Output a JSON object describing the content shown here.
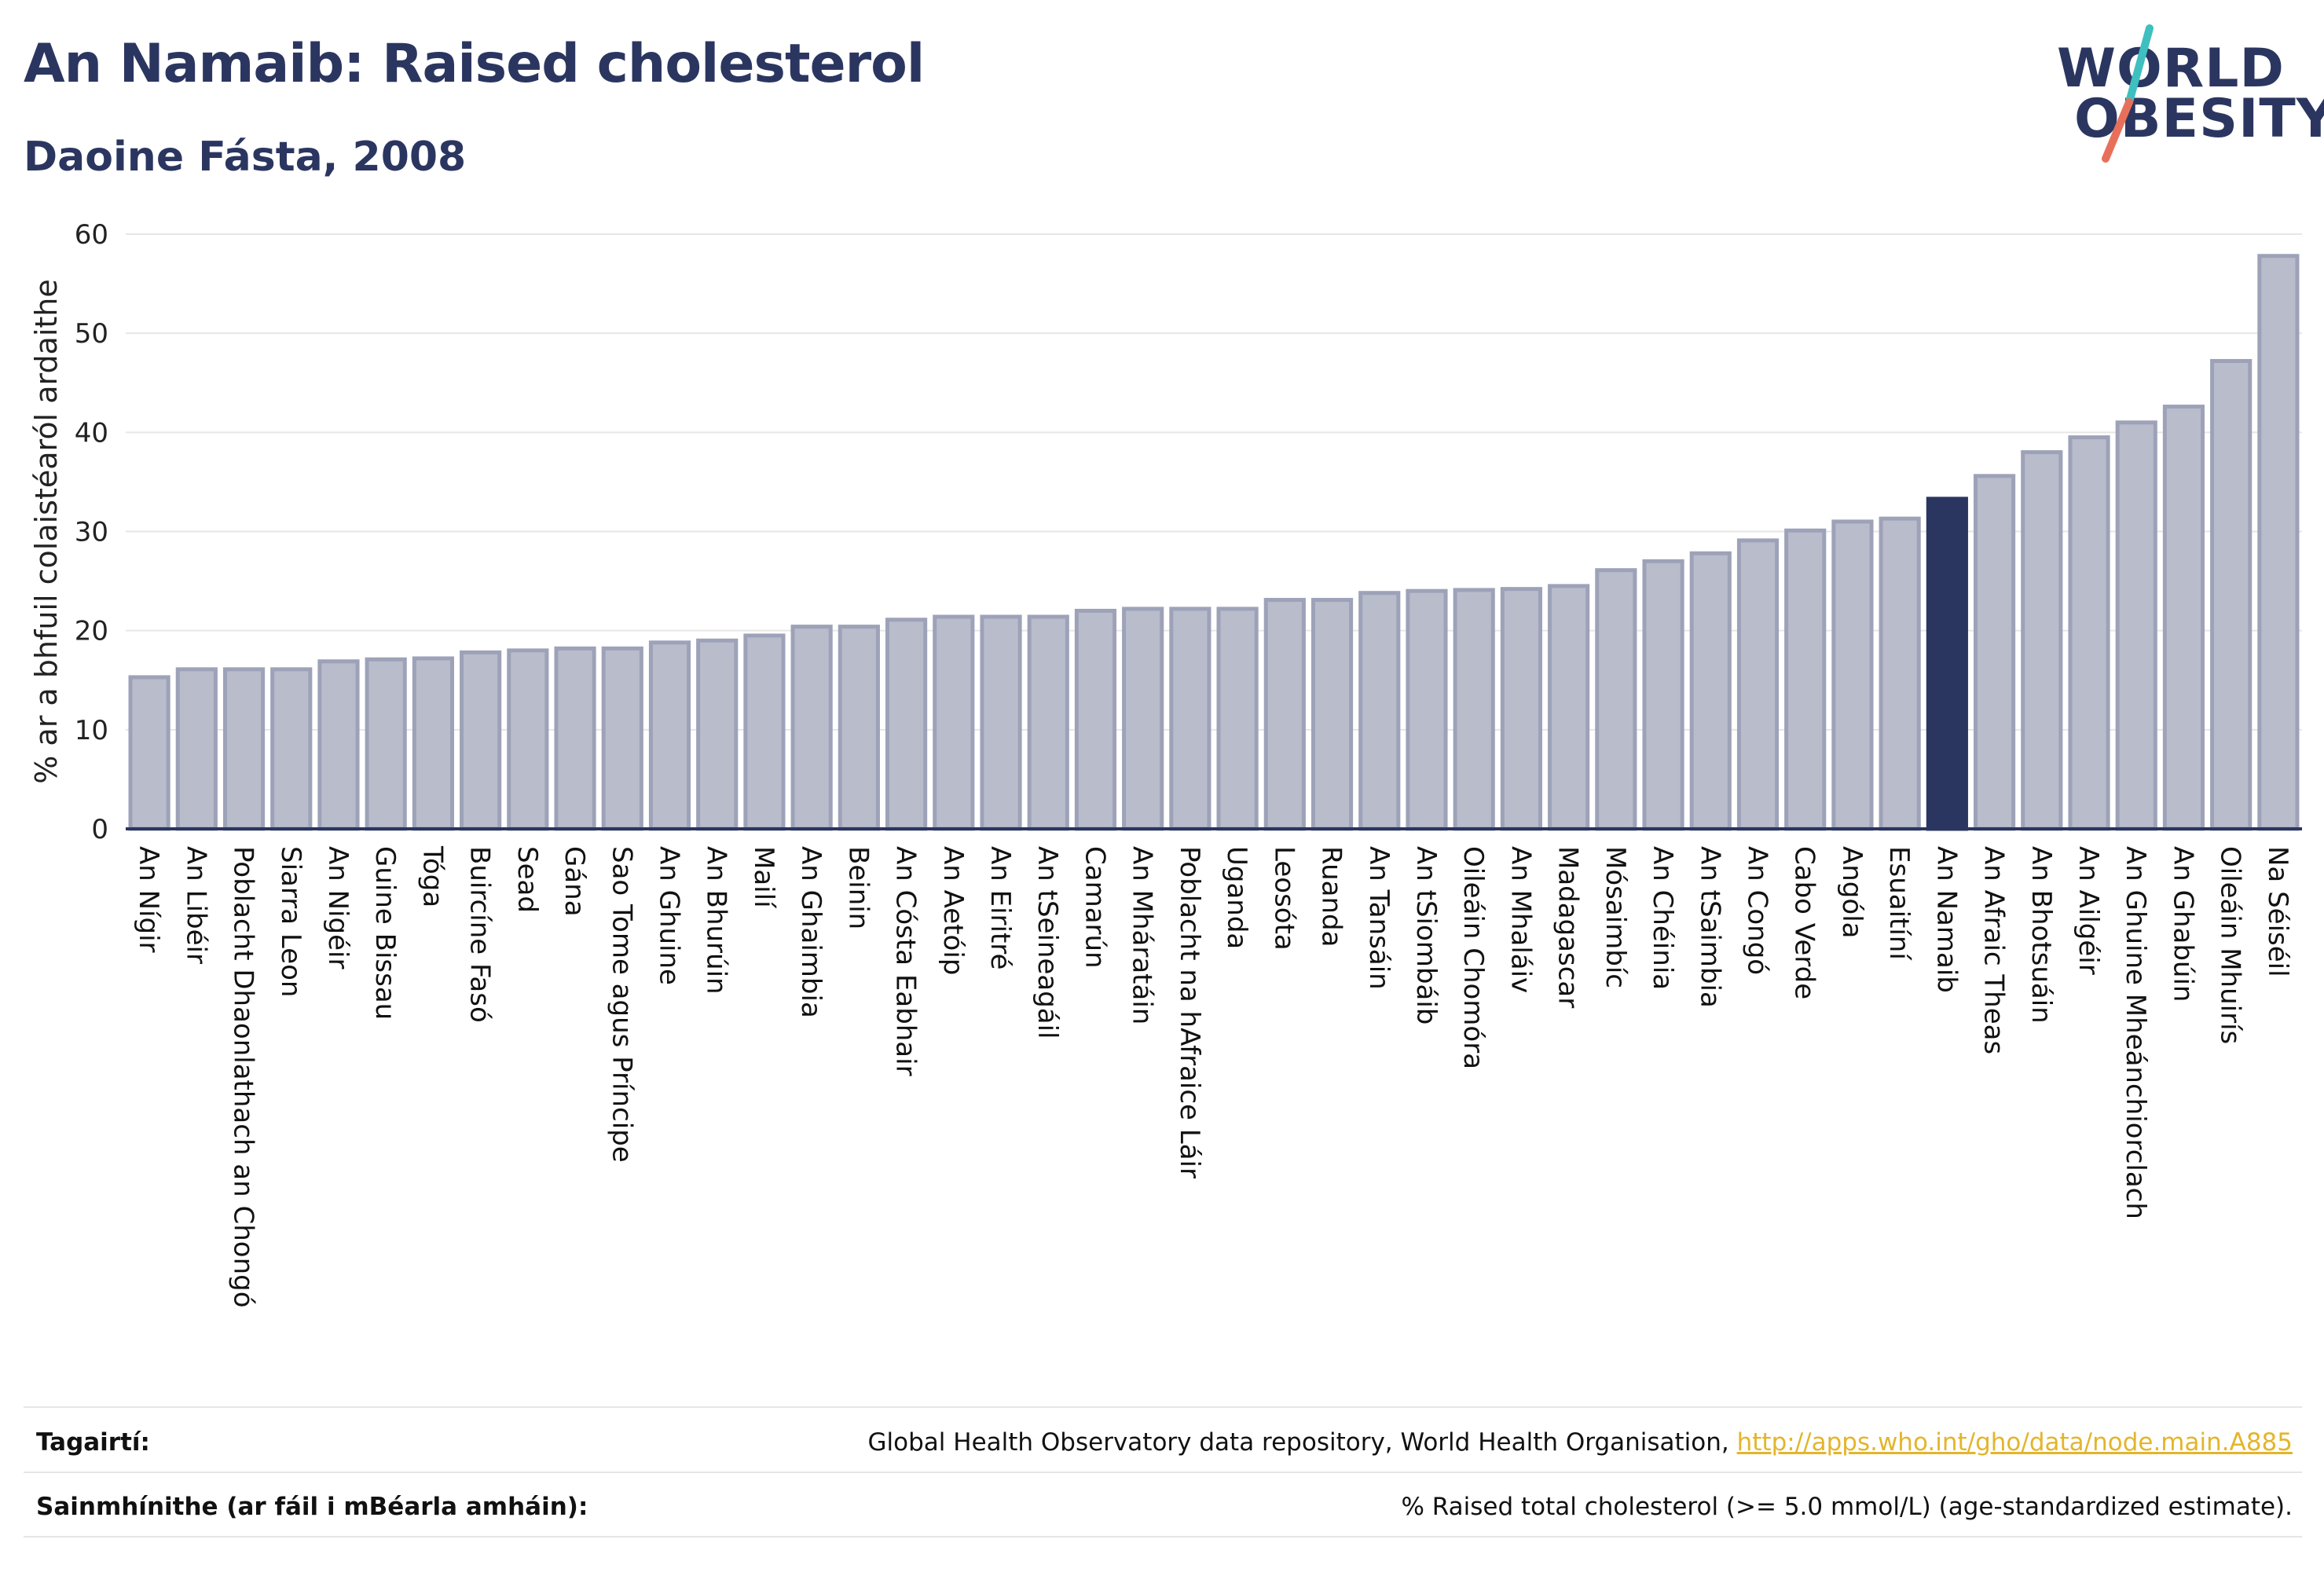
{
  "header": {
    "title": "An Namaib: Raised cholesterol",
    "subtitle": "Daoine Fásta, 2008"
  },
  "logo": {
    "line1": "WORLD",
    "line2": "OBESITY",
    "slash_colors": [
      "#3fbfbf",
      "#e8705a"
    ]
  },
  "colors": {
    "bar": "#b9bccb",
    "bar_border": "#9da2b8",
    "highlight": "#2b3660",
    "grid": "#e6e6e6",
    "axis": "#2b3660"
  },
  "chart_data": {
    "type": "bar",
    "ylabel": "% ar a bhfuil colaistéaról ardaithe",
    "ylim": [
      0,
      60
    ],
    "yticks": [
      0,
      10,
      20,
      30,
      40,
      50,
      60
    ],
    "grid": true,
    "highlight": "An Namaib",
    "categories": [
      "An Nígir",
      "An Libéir",
      "Poblacht Dhaonlathach an Chongó",
      "Siarra Leon",
      "An Nigéir",
      "Guine Bissau",
      "Tóga",
      "Buircíne Fasó",
      "Sead",
      "Gána",
      "Sao Tome agus Príncipe",
      "An Ghuine",
      "An Bhurúin",
      "Mailí",
      "An Ghaimbia",
      "Beinin",
      "An Cósta Eabhair",
      "An Aetóip",
      "An Eiritré",
      "An tSeineagáil",
      "Camarún",
      "An Mháratáin",
      "Poblacht na hAfraice Láir",
      "Uganda",
      "Leosóta",
      "Ruanda",
      "An Tansáin",
      "An tSiombáib",
      "Oileáin Chomóra",
      "An Mhaláiv",
      "Madagascar",
      "Mósaimbíc",
      "An Chéinia",
      "An tSaimbia",
      "An Congó",
      "Cabo Verde",
      "Angóla",
      "Esuaitíní",
      "An Namaib",
      "An Afraic Theas",
      "An Bhotsuáin",
      "An Ailgéir",
      "An Ghuine Mheánchiorclach",
      "An Ghabúin",
      "Oileáin Mhuirís",
      "Na Séiséil"
    ],
    "values": [
      15.3,
      16.1,
      16.1,
      16.1,
      16.9,
      17.1,
      17.2,
      17.8,
      18.0,
      18.2,
      18.2,
      18.8,
      19.0,
      19.5,
      20.4,
      20.4,
      21.1,
      21.4,
      21.4,
      21.4,
      22.0,
      22.2,
      22.2,
      22.2,
      23.1,
      23.1,
      23.8,
      24.0,
      24.1,
      24.2,
      24.5,
      26.1,
      27.0,
      27.8,
      29.1,
      30.1,
      31.0,
      31.3,
      33.3,
      35.6,
      38.0,
      39.5,
      41.0,
      42.6,
      47.2,
      57.8
    ]
  },
  "footer": {
    "references_label": "Tagairtí:",
    "references_text": "Global Health Observatory data repository, World Health Organisation, ",
    "references_link": "http://apps.who.int/gho/data/node.main.A885",
    "definitions_label": "Sainmhínithe (ar fáil i mBéarla amháin):",
    "definitions_text": "% Raised total cholesterol (>= 5.0 mmol/L) (age-standardized estimate)."
  }
}
